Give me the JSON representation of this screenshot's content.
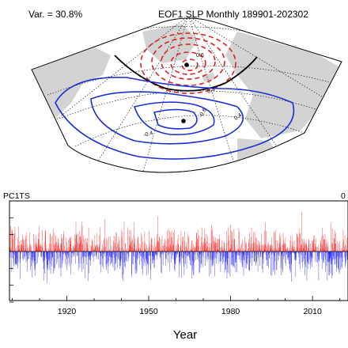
{
  "chart_data": [
    {
      "type": "contour-map",
      "variance_label": "Var. = 30.8%",
      "title": "EOF1 SLP Monthly 189901-202302",
      "projection": "polar sector, North Atlantic region",
      "colors": {
        "positive_contour": "#e02020",
        "negative_contour": "#1a2fd6",
        "zero_contour": "#000000",
        "land": "#d3d3d3",
        "ocean": "#ffffff"
      },
      "contour_labels": [
        {
          "text": "-0.4",
          "series": "negative"
        },
        {
          "text": "-0.6",
          "series": "negative"
        },
        {
          "text": "0.6",
          "series": "positive"
        },
        {
          "text": "0.4",
          "series": "positive"
        },
        {
          "text": "0.4",
          "series": "positive"
        }
      ],
      "center_markers": [
        {
          "name": "positive-lobe-center"
        },
        {
          "name": "negative-lobe-center"
        }
      ]
    },
    {
      "type": "bar",
      "title_left": "PC1TS",
      "title_right": "0",
      "xlabel": "Year",
      "xlim": [
        1899,
        2023
      ],
      "ylim": [
        -3,
        3
      ],
      "xticks": [
        1920,
        1950,
        1980,
        2010
      ],
      "colors": {
        "positive": "#ff0000",
        "negative": "#0000ff",
        "zero_line": "#000000"
      },
      "series": [
        {
          "frequency": "monthly",
          "start": "1899-01",
          "end": "2023-02"
        }
      ]
    }
  ]
}
